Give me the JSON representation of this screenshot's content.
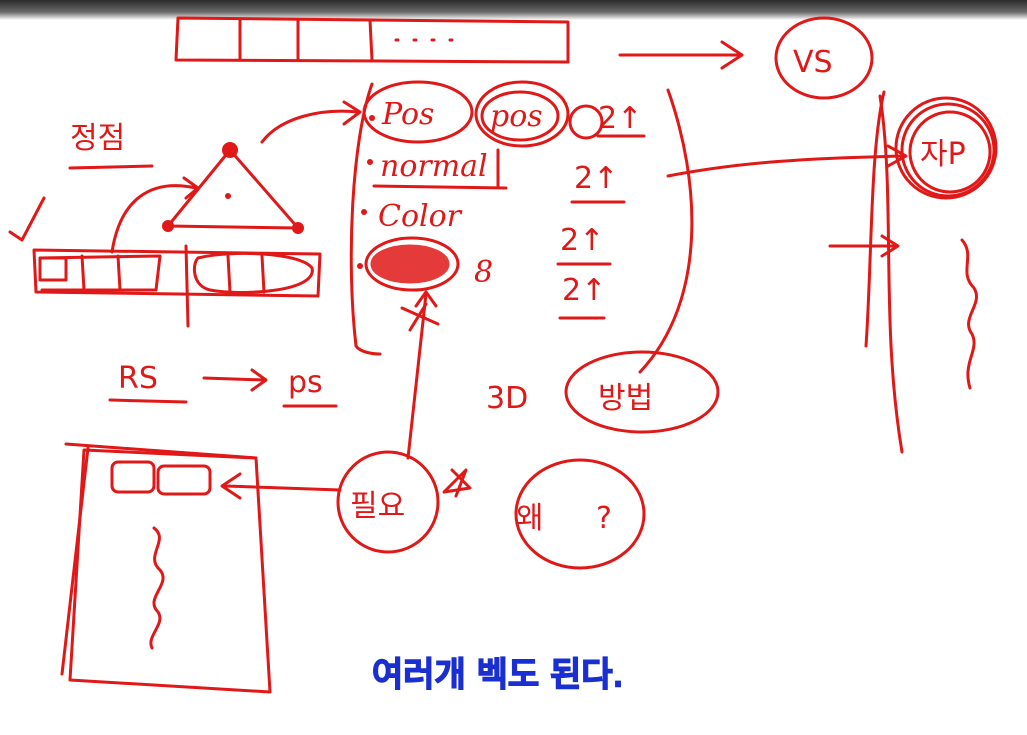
{
  "whiteboard": {
    "background": "#ffffff",
    "ink_color": "#e01818",
    "note_color": "#1a2fd1",
    "labels": {
      "vertex": "정점",
      "rs": "RS",
      "ps": "ps",
      "pos_1": "Pos",
      "pos_2": "pos",
      "normal": "normal",
      "color": "Color",
      "size_pos": "2↑",
      "size_normal": "2↑",
      "size_color_1": "2↑",
      "size_color_2": "2↑",
      "eight": "8",
      "three_d": "3D",
      "method": "방법",
      "vs": "VS",
      "circle_right": "자P",
      "needed": "필요",
      "why": "왜",
      "question": "?",
      "blue_note": "여러개 벡도 된다."
    }
  }
}
